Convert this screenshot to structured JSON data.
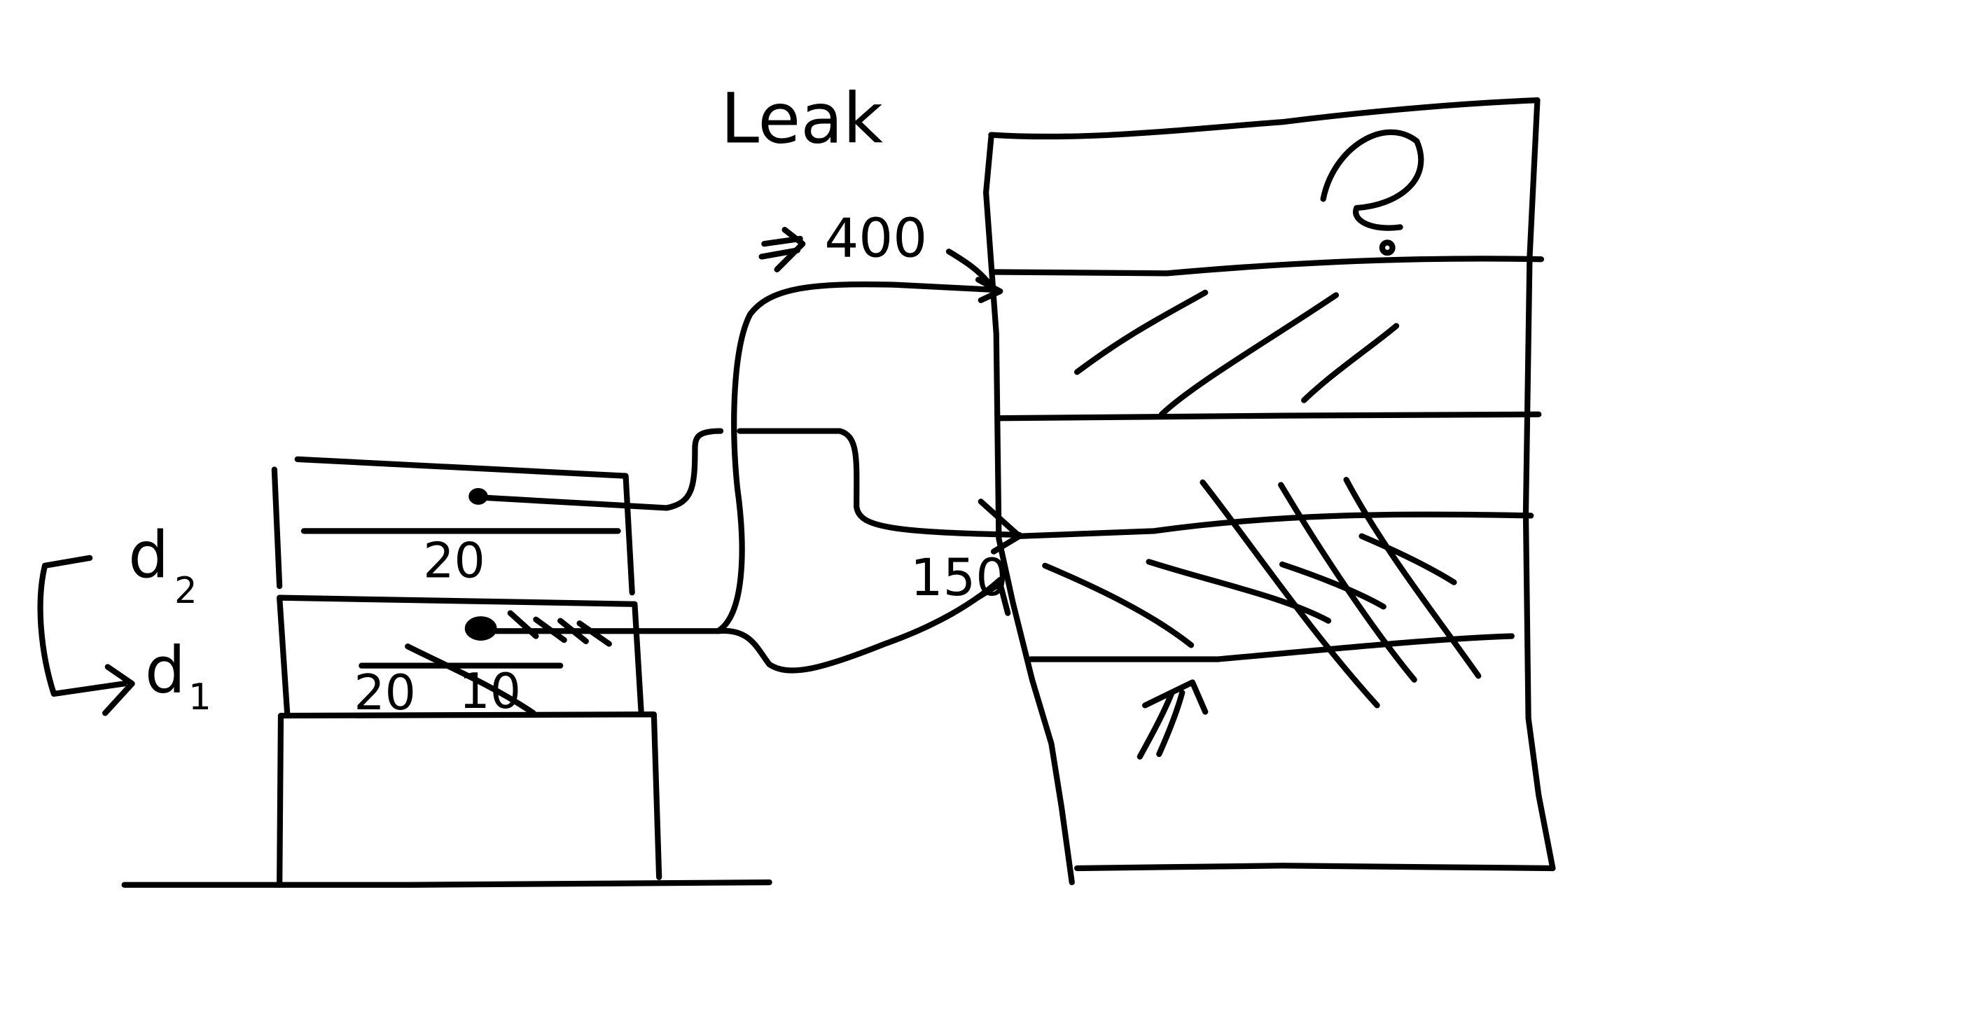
{
  "labels": {
    "title": "Leak",
    "address_top": "400",
    "address_bottom": "150",
    "stack_value_d2": "20",
    "stack_value_d1_old": "20",
    "stack_value_d1_new": "10",
    "var_d2_letter": "d",
    "var_d2_sub": "2",
    "var_d1_letter": "d",
    "var_d1_sub": "1",
    "unknown_mark": "?"
  },
  "colors": {
    "ink": "#000000",
    "background": "#ffffff"
  }
}
